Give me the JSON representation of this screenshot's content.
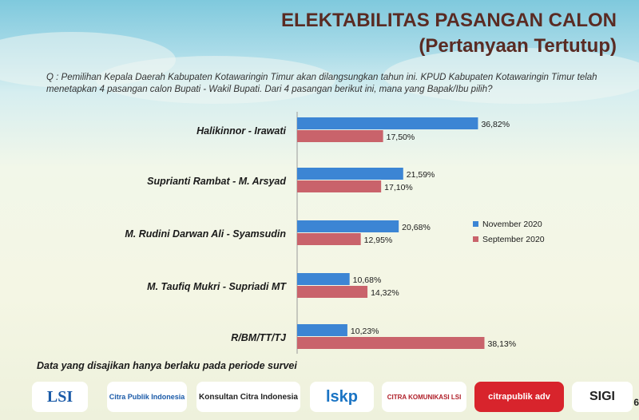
{
  "header": {
    "title_line1": "ELEKTABILITAS PASANGAN CALON",
    "title_line2": "(Pertanyaan Tertutup)"
  },
  "question": "Q : Pemilihan Kepala Daerah Kabupaten Kotawaringin Timur akan dilangsungkan tahun ini. KPUD Kabupaten Kotawaringin Timur telah menetapkan 4 pasangan calon Bupati - Wakil Bupati. Dari 4 pasangan berikut ini, mana yang Bapak/Ibu pilih?",
  "footnote": "Data yang disajikan hanya berlaku pada periode survei",
  "page_number": "6",
  "colors": {
    "november": "#3c85d4",
    "september": "#c9636b"
  },
  "chart_data": {
    "type": "bar",
    "orientation": "horizontal",
    "categories": [
      "Halikinnor - Irawati",
      "Suprianti Rambat - M. Arsyad",
      "M. Rudini Darwan Ali - Syamsudin",
      "M. Taufiq Mukri - Supriadi MT",
      "R/BM/TT/TJ"
    ],
    "series": [
      {
        "name": "November 2020",
        "values": [
          36.82,
          21.59,
          20.68,
          10.68,
          10.23
        ],
        "labels": [
          "36,82%",
          "21,59%",
          "20,68%",
          "10,68%",
          "10,23%"
        ]
      },
      {
        "name": "September 2020",
        "values": [
          17.5,
          17.1,
          12.95,
          14.32,
          38.13
        ],
        "labels": [
          "17,50%",
          "17,10%",
          "12,95%",
          "14,32%",
          "38,13%"
        ]
      }
    ],
    "xlim": [
      0,
      40
    ],
    "legend": "right"
  },
  "logos": [
    {
      "name": "lsi",
      "text": "LSI"
    },
    {
      "name": "citra-publik-indonesia",
      "text": "Citra Publik Indonesia"
    },
    {
      "name": "konsultan-citra-indonesia",
      "text": "Konsultan Citra Indonesia"
    },
    {
      "name": "lskp",
      "text": "lskp"
    },
    {
      "name": "citra-komunikasi-lsi",
      "text": "CITRA KOMUNIKASI LSI"
    },
    {
      "name": "citrapublik-adv",
      "text": "citrapublik adv"
    },
    {
      "name": "sigi",
      "text": "SIGI"
    }
  ]
}
